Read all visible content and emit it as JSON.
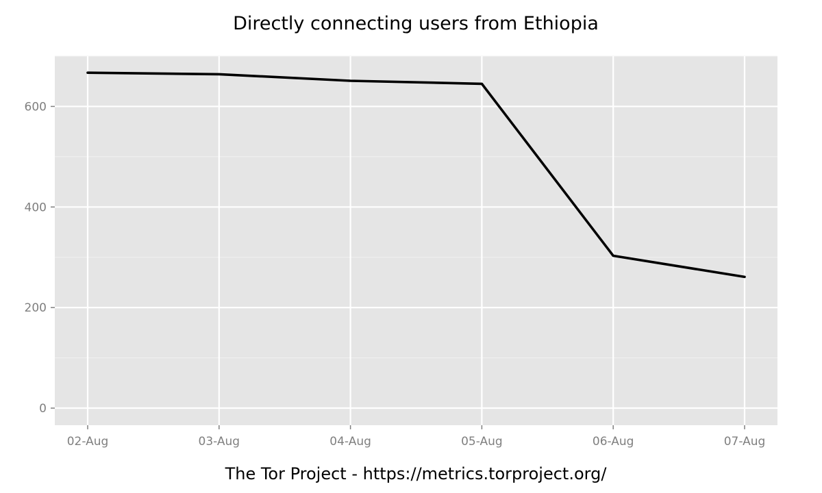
{
  "chart_data": {
    "type": "line",
    "title": "Directly connecting users from Ethiopia",
    "caption": "The Tor Project - https://metrics.torproject.org/",
    "xlabel": "",
    "ylabel": "",
    "categories": [
      "02-Aug",
      "03-Aug",
      "04-Aug",
      "05-Aug",
      "06-Aug",
      "07-Aug"
    ],
    "series": [
      {
        "name": "Directly connecting users",
        "values": [
          667,
          664,
          651,
          645,
          303,
          261
        ]
      }
    ],
    "y_ticks": [
      0,
      200,
      400,
      600
    ],
    "y_tick_labels": [
      "0",
      "200",
      "400",
      "600"
    ],
    "ylim": [
      -34,
      700
    ],
    "grid": true,
    "legend": "none",
    "colors": {
      "panel": "#e5e5e5",
      "line": "#000000",
      "tick_text": "#7f7f7f"
    }
  }
}
